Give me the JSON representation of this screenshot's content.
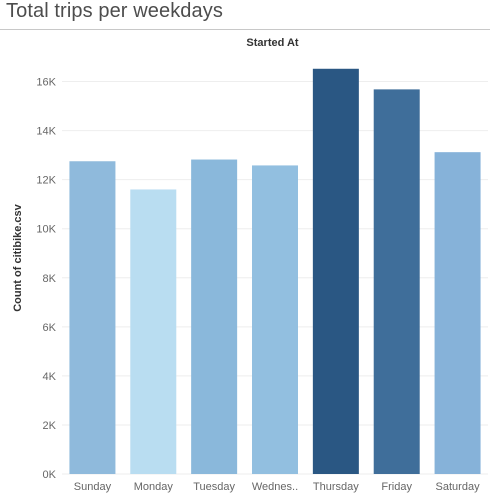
{
  "chart_data": {
    "type": "bar",
    "title": "Total trips per weekdays",
    "column_header": "Started At",
    "ylabel": "Count of citibike.csv",
    "xlabel": "",
    "categories": [
      "Sunday",
      "Monday",
      "Tuesday",
      "Wednes..",
      "Thursday",
      "Friday",
      "Saturday"
    ],
    "values": [
      12750,
      11600,
      12820,
      12580,
      16520,
      15680,
      13120
    ],
    "colors": [
      "#8fbadc",
      "#b9ddf1",
      "#8ab8db",
      "#92bfe0",
      "#2a5783",
      "#3f6e9a",
      "#86b2d9"
    ],
    "ylim": [
      0,
      17000
    ],
    "yticks": [
      0,
      2000,
      4000,
      6000,
      8000,
      10000,
      12000,
      14000,
      16000
    ],
    "ytick_labels": [
      "0K",
      "2K",
      "4K",
      "6K",
      "8K",
      "10K",
      "12K",
      "14K",
      "16K"
    ],
    "grid": true,
    "legend": "none"
  }
}
